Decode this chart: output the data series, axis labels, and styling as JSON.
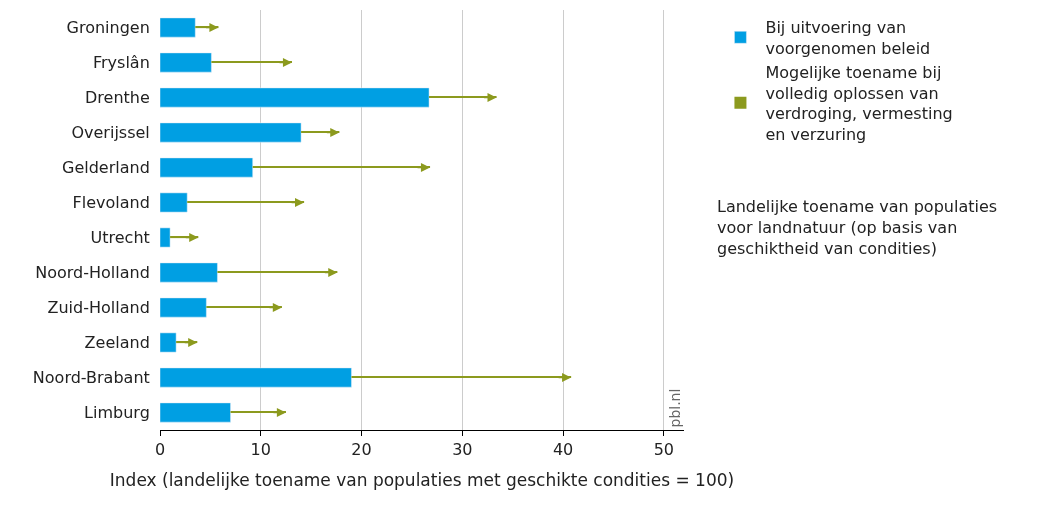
{
  "chart_data": {
    "type": "bar",
    "orientation": "horizontal",
    "stacked": true,
    "categories": [
      "Groningen",
      "Fryslân",
      "Drenthe",
      "Overijssel",
      "Gelderland",
      "Flevoland",
      "Utrecht",
      "Noord-Holland",
      "Zuid-Holland",
      "Zeeland",
      "Noord-Brabant",
      "Limburg"
    ],
    "series": [
      {
        "name": "Bij uitvoering van voorgenomen beleid",
        "color": "#009fe3",
        "values": [
          3.5,
          5.1,
          26.7,
          14.0,
          9.2,
          2.7,
          1.0,
          5.7,
          4.6,
          1.6,
          19.0,
          7.0
        ]
      },
      {
        "name": "Mogelijke toename bij volledig oplossen van verdroging, vermesting en verzuring",
        "marker": "triangle",
        "color": "#8c9a1e",
        "values": [
          2.3,
          8.0,
          6.7,
          3.8,
          17.6,
          11.6,
          2.8,
          11.9,
          7.5,
          2.1,
          21.8,
          5.5
        ]
      }
    ],
    "xlim": [
      0,
      52
    ],
    "xticks": [
      0,
      10,
      20,
      30,
      40,
      50
    ],
    "grid": "x",
    "xlabel": "Index (landelijke toename van populaties met geschikte condities = 100)",
    "legend": "right",
    "annotations": [
      "Landelijke toename van populaties voor landnatuur (op basis van geschiktheid van condities)",
      "pbl.nl"
    ]
  }
}
